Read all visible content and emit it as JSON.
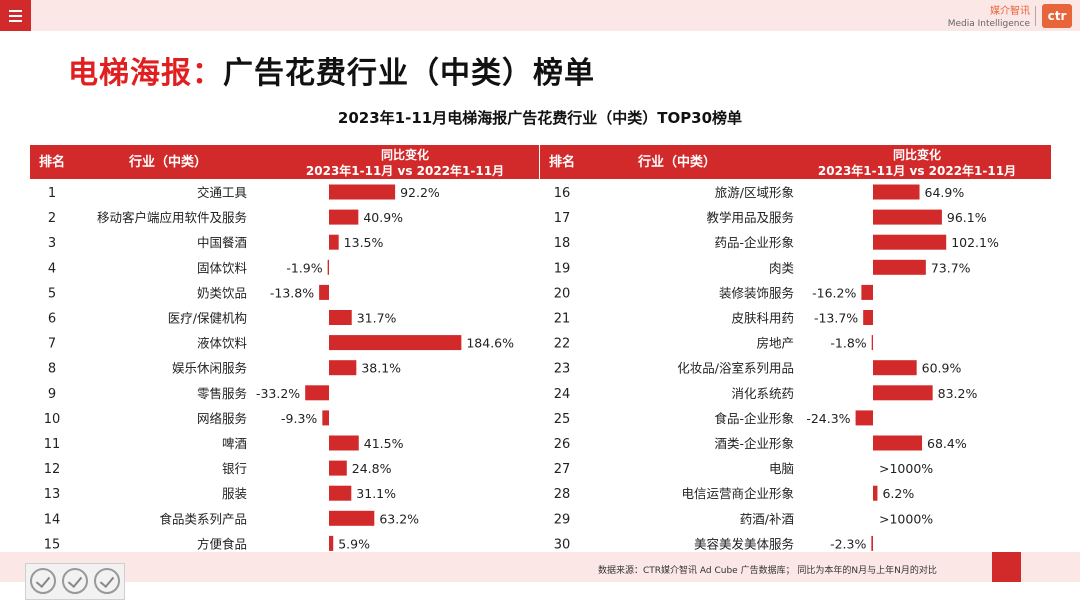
{
  "header": {
    "brand_cn": "媒介智讯",
    "brand_en": "Media Intelligence",
    "logo_text": "ctr"
  },
  "title": {
    "highlight": "电梯海报：",
    "rest": "广告花费行业（中类）榜单"
  },
  "subtitle": "2023年1-11月电梯海报广告花费行业（中类）TOP30榜单",
  "table_headers": {
    "rank": "排名",
    "industry": "行业（中类）",
    "change_line1": "同比变化",
    "change_line2": "2023年1-11月 vs 2022年1-11月"
  },
  "footer": {
    "source": "数据来源：CTR媒介智讯 Ad Cube 广告数据库；  同比为本年的N月与上年N月的对比"
  },
  "colors": {
    "accent": "#d22a2a",
    "bar": "#d22a2a",
    "title_red": "#e02020"
  },
  "chart_data": {
    "type": "bar",
    "orientation": "horizontal",
    "unit": "%",
    "rows": [
      {
        "rank": 1,
        "industry": "交通工具",
        "value": 92.2,
        "label": "92.2%"
      },
      {
        "rank": 2,
        "industry": "移动客户端应用软件及服务",
        "value": 40.9,
        "label": "40.9%"
      },
      {
        "rank": 3,
        "industry": "中国餐酒",
        "value": 13.5,
        "label": "13.5%"
      },
      {
        "rank": 4,
        "industry": "固体饮料",
        "value": -1.9,
        "label": "-1.9%"
      },
      {
        "rank": 5,
        "industry": "奶类饮品",
        "value": -13.8,
        "label": "-13.8%"
      },
      {
        "rank": 6,
        "industry": "医疗/保健机构",
        "value": 31.7,
        "label": "31.7%"
      },
      {
        "rank": 7,
        "industry": "液体饮料",
        "value": 184.6,
        "label": "184.6%"
      },
      {
        "rank": 8,
        "industry": "娱乐休闲服务",
        "value": 38.1,
        "label": "38.1%"
      },
      {
        "rank": 9,
        "industry": "零售服务",
        "value": -33.2,
        "label": "-33.2%"
      },
      {
        "rank": 10,
        "industry": "网络服务",
        "value": -9.3,
        "label": "-9.3%"
      },
      {
        "rank": 11,
        "industry": "啤酒",
        "value": 41.5,
        "label": "41.5%"
      },
      {
        "rank": 12,
        "industry": "银行",
        "value": 24.8,
        "label": "24.8%"
      },
      {
        "rank": 13,
        "industry": "服装",
        "value": 31.1,
        "label": "31.1%"
      },
      {
        "rank": 14,
        "industry": "食品类系列产品",
        "value": 63.2,
        "label": "63.2%"
      },
      {
        "rank": 15,
        "industry": "方便食品",
        "value": 5.9,
        "label": "5.9%"
      },
      {
        "rank": 16,
        "industry": "旅游/区域形象",
        "value": 64.9,
        "label": "64.9%"
      },
      {
        "rank": 17,
        "industry": "教学用品及服务",
        "value": 96.1,
        "label": "96.1%"
      },
      {
        "rank": 18,
        "industry": "药品-企业形象",
        "value": 102.1,
        "label": "102.1%"
      },
      {
        "rank": 19,
        "industry": "肉类",
        "value": 73.7,
        "label": "73.7%"
      },
      {
        "rank": 20,
        "industry": "装修装饰服务",
        "value": -16.2,
        "label": "-16.2%"
      },
      {
        "rank": 21,
        "industry": "皮肤科用药",
        "value": -13.7,
        "label": "-13.7%"
      },
      {
        "rank": 22,
        "industry": "房地产",
        "value": -1.8,
        "label": "-1.8%"
      },
      {
        "rank": 23,
        "industry": "化妆品/浴室系列用品",
        "value": 60.9,
        "label": "60.9%"
      },
      {
        "rank": 24,
        "industry": "消化系统药",
        "value": 83.2,
        "label": "83.2%"
      },
      {
        "rank": 25,
        "industry": "食品-企业形象",
        "value": -24.3,
        "label": "-24.3%"
      },
      {
        "rank": 26,
        "industry": "酒类-企业形象",
        "value": 68.4,
        "label": "68.4%"
      },
      {
        "rank": 27,
        "industry": "电脑",
        "value": null,
        "label": ">1000%"
      },
      {
        "rank": 28,
        "industry": "电信运营商企业形象",
        "value": 6.2,
        "label": "6.2%"
      },
      {
        "rank": 29,
        "industry": "药酒/补酒",
        "value": null,
        "label": ">1000%"
      },
      {
        "rank": 30,
        "industry": "美容美发美体服务",
        "value": -2.3,
        "label": "-2.3%"
      }
    ]
  }
}
